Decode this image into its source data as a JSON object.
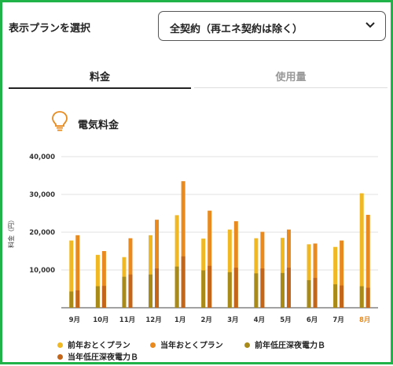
{
  "header": {
    "plan_label": "表示プランを選択",
    "plan_selected": "全契約（再エネ契約は除く）"
  },
  "tabs": [
    {
      "label": "料金",
      "active": true
    },
    {
      "label": "使用量",
      "active": false
    }
  ],
  "section": {
    "title": "電気料金",
    "icon": "lightbulb-icon"
  },
  "colors": {
    "border": "#1fb34a",
    "prev_plan": "#f0b823",
    "curr_plan": "#e88a1e",
    "prev_night": "#a88a1a",
    "curr_night": "#c4661a",
    "active_month": "#e88a1e"
  },
  "chart_data": {
    "type": "bar",
    "ylabel": "料金（円）",
    "ylim": [
      0,
      40000
    ],
    "yticks": [
      "40,000",
      "30,000",
      "20,000",
      "10,000"
    ],
    "ytick_values": [
      40000,
      30000,
      20000,
      10000
    ],
    "grid": true,
    "categories": [
      "9月",
      "10月",
      "11月",
      "12月",
      "1月",
      "2月",
      "3月",
      "4月",
      "5月",
      "6月",
      "7月",
      "8月"
    ],
    "highlight_category": "8月",
    "series": [
      {
        "name": "前年おとくプラン",
        "values": [
          17800,
          14000,
          13400,
          19200,
          24500,
          18300,
          20700,
          18400,
          18500,
          16800,
          16100,
          30300
        ]
      },
      {
        "name": "当年おとくプラン",
        "values": [
          19200,
          15000,
          18400,
          23300,
          33500,
          25700,
          22900,
          20100,
          20700,
          17000,
          17800,
          24600
        ]
      },
      {
        "name": "前年低圧深夜電力Ｂ",
        "values": [
          4300,
          5700,
          8200,
          8800,
          10900,
          9900,
          9400,
          9100,
          9200,
          7300,
          6200,
          5700
        ]
      },
      {
        "name": "当年低圧深夜電力Ｂ",
        "values": [
          4600,
          5800,
          8800,
          10400,
          13600,
          11100,
          10600,
          10400,
          10600,
          7900,
          5900,
          5300
        ]
      }
    ]
  },
  "legend": [
    {
      "label": "前年おとくプラン",
      "color": "#f0b823"
    },
    {
      "label": "当年おとくプラン",
      "color": "#e88a1e"
    },
    {
      "label": "前年低圧深夜電力Ｂ",
      "color": "#a88a1a"
    },
    {
      "label": "当年低圧深夜電力Ｂ",
      "color": "#c4661a"
    }
  ]
}
